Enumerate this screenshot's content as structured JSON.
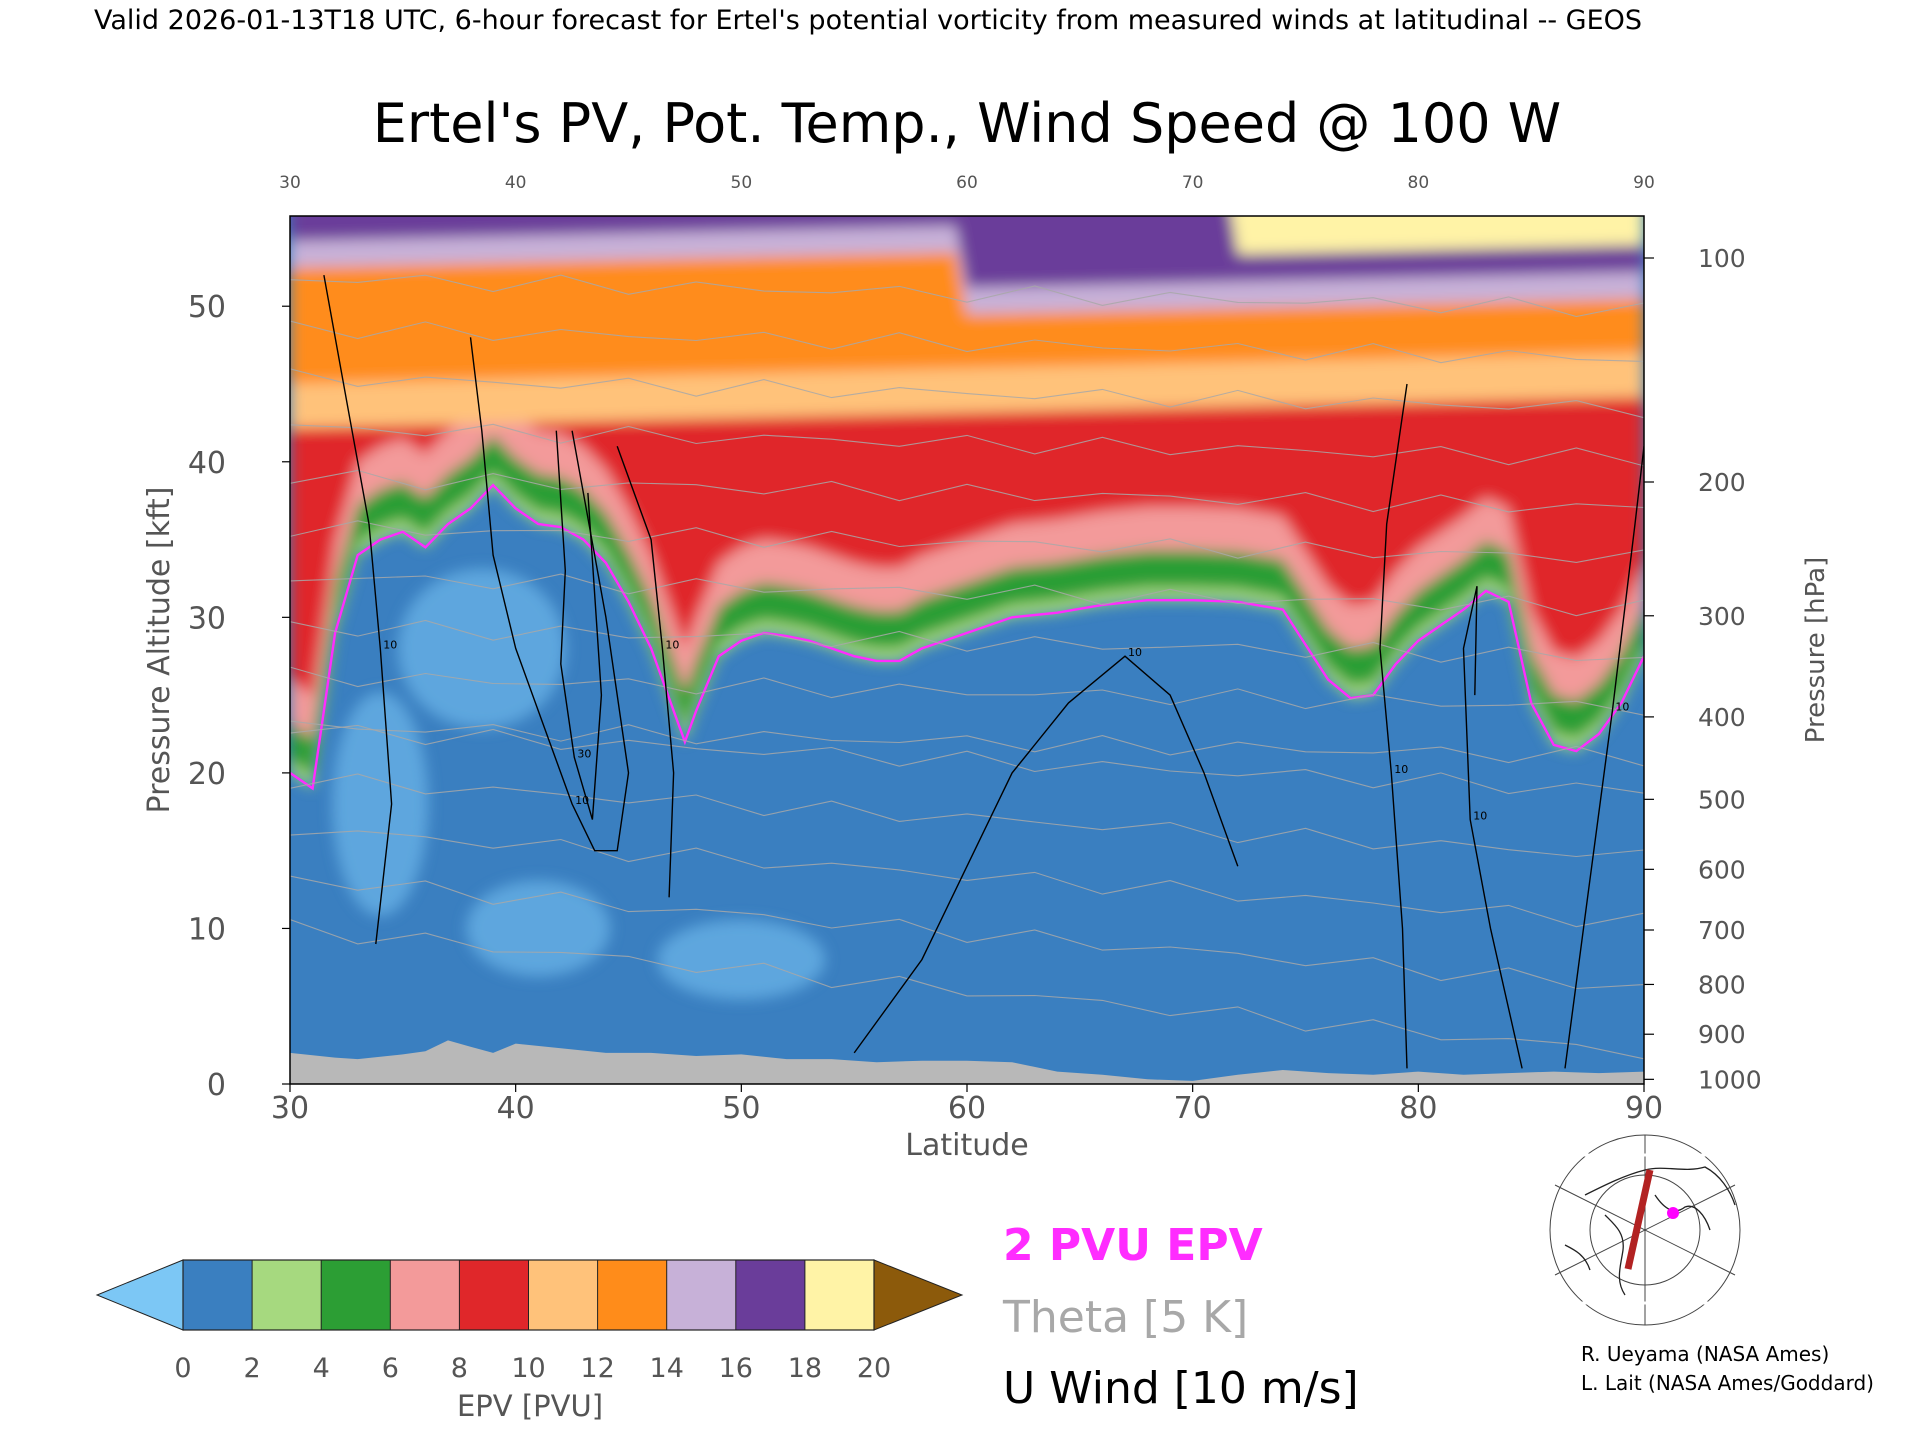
{
  "header": {
    "valid_line": "Valid 2026-01-13T18 UTC, 6-hour forecast for Ertel's potential vorticity from measured winds at latitudinal -- GEOS"
  },
  "chart_data": {
    "type": "heatmap",
    "title": "Ertel's PV, Pot. Temp., Wind Speed @ 100 W",
    "xlabel": "Latitude",
    "ylabel_left": "Pressure Altitude [kft]",
    "ylabel_right": "Pressure [hPa]",
    "xlim": [
      30,
      90
    ],
    "ylim": [
      0,
      55.8
    ],
    "x_ticks": [
      30,
      40,
      50,
      60,
      70,
      80,
      90
    ],
    "y_ticks_left": [
      0,
      10,
      20,
      30,
      40,
      50
    ],
    "pressure_ticks": [
      {
        "label": "100",
        "kft": 53.1
      },
      {
        "label": "200",
        "kft": 38.7
      },
      {
        "label": "300",
        "kft": 30.1
      },
      {
        "label": "400",
        "kft": 23.6
      },
      {
        "label": "500",
        "kft": 18.3
      },
      {
        "label": "600",
        "kft": 13.8
      },
      {
        "label": "700",
        "kft": 9.9
      },
      {
        "label": "800",
        "kft": 6.4
      },
      {
        "label": "900",
        "kft": 3.2
      },
      {
        "label": "1000",
        "kft": 0.3
      }
    ],
    "tropopause_2pvu": {
      "latitude": [
        30,
        31,
        31.5,
        32,
        33,
        34,
        35,
        36,
        37,
        38,
        39,
        40,
        41,
        42,
        43,
        44,
        45,
        46,
        47,
        47.5,
        48,
        49,
        50,
        51,
        52,
        53,
        54,
        55,
        56,
        57,
        58,
        59,
        60,
        62,
        64,
        66,
        68,
        70,
        72,
        74,
        76,
        77,
        78,
        79,
        80,
        81,
        82,
        83,
        84,
        85,
        86,
        87,
        88,
        89,
        90
      ],
      "kft": [
        20,
        19,
        24,
        29,
        34,
        35,
        35.5,
        34.5,
        36,
        37,
        38.5,
        37,
        36,
        35.8,
        35,
        33.5,
        31,
        28,
        24,
        22,
        24,
        27.5,
        28.5,
        29,
        28.8,
        28.5,
        28,
        27.5,
        27.2,
        27.2,
        28,
        28.5,
        29,
        30,
        30.3,
        30.8,
        31.1,
        31.1,
        31,
        30.5,
        26,
        24.8,
        25,
        27,
        28.5,
        29.5,
        30.5,
        31.7,
        31,
        24.5,
        21.8,
        21.4,
        22.5,
        24.5,
        27.5
      ]
    },
    "u_wind_contours": [
      {
        "label": "10",
        "latitude": [
          31.5,
          32.5,
          33.5,
          34,
          34.5,
          33.8
        ],
        "kft": [
          52,
          44,
          36,
          28,
          18,
          9
        ]
      },
      {
        "label": "10",
        "latitude": [
          38,
          38.5,
          39,
          40,
          41.5,
          42.5,
          43.5,
          44.5,
          45,
          44,
          42.5
        ],
        "kft": [
          48,
          42,
          34,
          28,
          22,
          18,
          15,
          15,
          20,
          30,
          42
        ]
      },
      {
        "label": "30",
        "latitude": [
          41.8,
          42.2,
          42,
          42.6,
          43.4,
          43.8,
          43.2
        ],
        "kft": [
          42,
          33,
          27,
          21,
          17,
          25,
          38
        ]
      },
      {
        "label": "10",
        "latitude": [
          44.5,
          46,
          46.5,
          47,
          46.8
        ],
        "kft": [
          41,
          35,
          28,
          20,
          12
        ]
      },
      {
        "label": "10",
        "latitude": [
          55,
          58,
          60,
          62,
          64.5,
          67,
          69,
          70.5,
          71.5,
          72
        ],
        "kft": [
          2,
          8,
          14,
          20,
          24.5,
          27.5,
          25,
          20,
          16,
          14
        ]
      },
      {
        "label": "10",
        "latitude": [
          79.5,
          78.6,
          78.3,
          78.8,
          79.3,
          79.5
        ],
        "kft": [
          45,
          36,
          28,
          20,
          10,
          1
        ]
      },
      {
        "label": "10",
        "latitude": [
          82.5,
          82.6,
          82,
          82.3,
          83.2,
          84.6
        ],
        "kft": [
          25,
          32,
          28,
          17,
          10,
          1
        ]
      },
      {
        "label": "10",
        "latitude": [
          86.5,
          87.5,
          88.6,
          89.6,
          90
        ],
        "kft": [
          1,
          12,
          24,
          36,
          41
        ]
      }
    ],
    "theta_label": "Theta [5 K]",
    "theta_isentropes_K": [
      310,
      320,
      330,
      340,
      350,
      360,
      370,
      380,
      390,
      400,
      410,
      420,
      430,
      440,
      450
    ],
    "colorbar": {
      "label": "EPV [PVU]",
      "ticks": [
        0,
        2,
        4,
        6,
        8,
        10,
        12,
        14,
        16,
        18,
        20
      ],
      "colors": [
        "#3a7fc0",
        "#a6d97f",
        "#2c9e34",
        "#f39a9a",
        "#e0272a",
        "#ffc27a",
        "#ff8c1a",
        "#c7b1d8",
        "#6a3d9a",
        "#fff3a6"
      ],
      "under_color": "#7cc7f5",
      "over_color": "#8c5a0b"
    },
    "legend": {
      "epv_2pvu": "2 PVU EPV",
      "theta": "Theta [5 K]",
      "u_wind": "U Wind [10 m/s]",
      "colors": {
        "epv_2pvu": "#ff2cff",
        "theta": "#a8a8a8",
        "u_wind": "#000000"
      }
    }
  },
  "credits": {
    "line1": "R. Ueyama (NASA Ames)",
    "line2": "L. Lait (NASA Ames/Goddard)"
  },
  "locator_map": {
    "track_color": "#b22222",
    "marker_color": "#ff00ff"
  }
}
